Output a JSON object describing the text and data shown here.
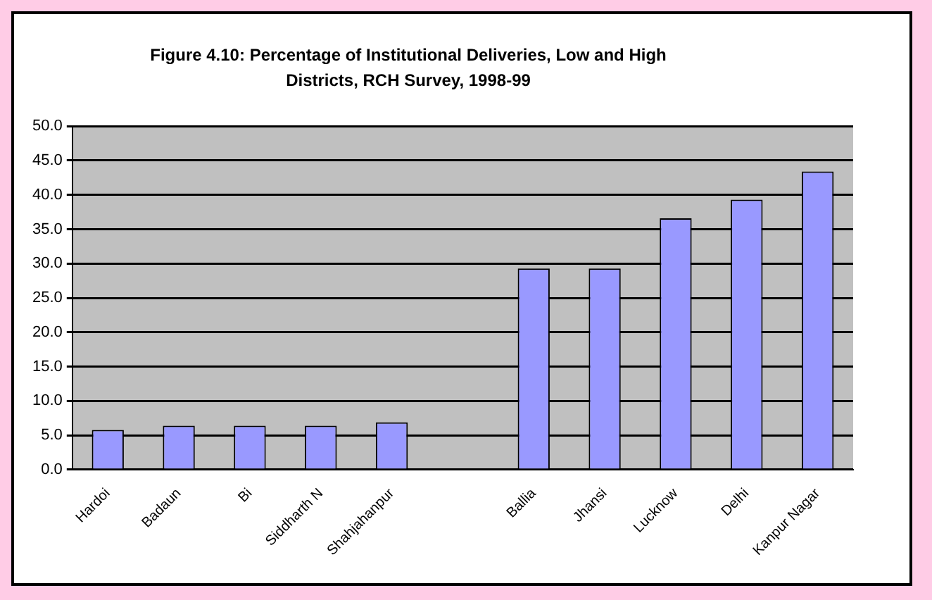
{
  "chart_data": {
    "type": "bar",
    "title": "Figure 4.10: Percentage of Institutional Deliveries, Low and High\nDistricts, RCH Survey, 1998-99",
    "categories": [
      "Hardoi",
      "Badaun",
      "Bi",
      "Siddharth N",
      "Shahjahanpur",
      null,
      "Ballia",
      "Jhansi",
      "Lucknow",
      "Delhi",
      "Kanpur Nagar"
    ],
    "values": [
      5.8,
      6.4,
      6.4,
      6.4,
      6.9,
      null,
      29.3,
      29.3,
      36.6,
      39.3,
      43.4
    ],
    "color": "#9999ff",
    "ylim": [
      0,
      50
    ],
    "yticks": [
      {
        "value": 0,
        "label": "0.0"
      },
      {
        "value": 5,
        "label": "5.0"
      },
      {
        "value": 10,
        "label": "10.0"
      },
      {
        "value": 15,
        "label": "15.0"
      },
      {
        "value": 20,
        "label": "20.0"
      },
      {
        "value": 25,
        "label": "25.0"
      },
      {
        "value": 30,
        "label": "30.0"
      },
      {
        "value": 35,
        "label": "35.0"
      },
      {
        "value": 40,
        "label": "40.0"
      },
      {
        "value": 45,
        "label": "45.0"
      },
      {
        "value": 50,
        "label": "50.0"
      }
    ],
    "grid": "y",
    "legend": false
  }
}
